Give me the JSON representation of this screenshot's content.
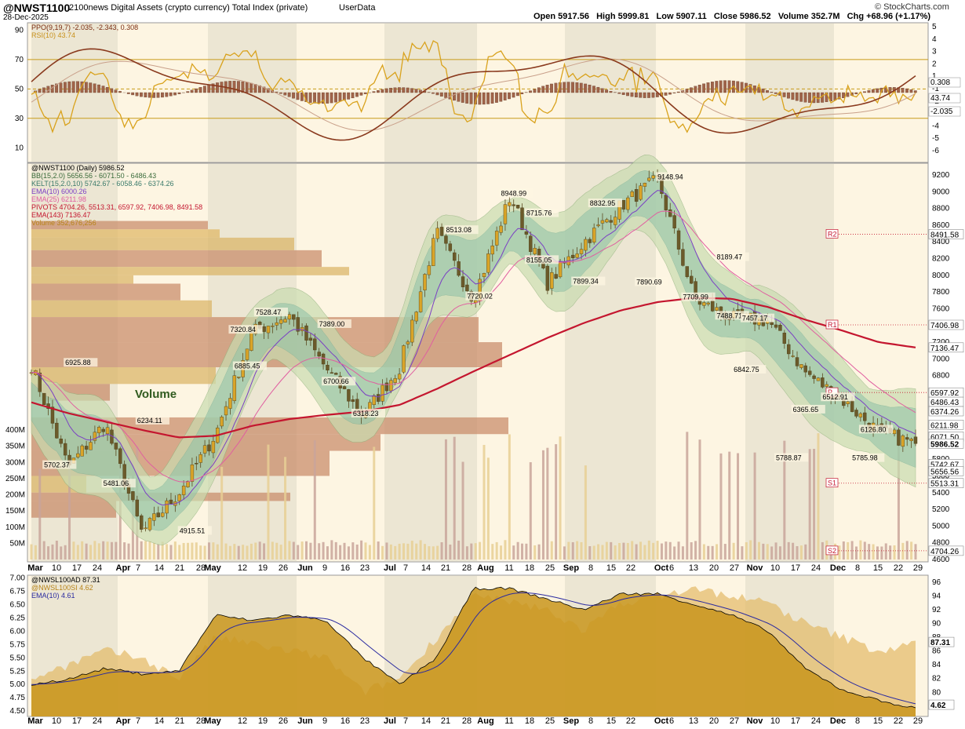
{
  "header": {
    "symbol": "@NWST1100",
    "name": "2100news Digital Assets (crypto currency) Total Index (private)",
    "source": "UserData",
    "date": "28-Dec-2025",
    "ohlc": "Open 5917.56   High 5999.81   Low 5907.11   Close 5986.52   Volume 352.7M   Chg +68.96 (+1.17%)",
    "watermark": "© StockCharts.com"
  },
  "top_panel": {
    "legend": [
      "PPO(9,19,7) -2.035, -2.343, 0.308",
      "RSI(10) 43.74"
    ],
    "left_ticks": [
      "90",
      "70",
      "50",
      "30",
      "10"
    ],
    "right_ticks": [
      "5",
      "4",
      "3",
      "2",
      "1",
      "-1",
      "-2",
      "-3",
      "-4",
      "-5",
      "-6"
    ],
    "tags": [
      "0.308",
      "43.74",
      "-2.035"
    ]
  },
  "main_panel": {
    "legend": [
      "@NWST1100 (Daily) 5986.52",
      "BB(15,2.0) 5656.56 - 6071.50 - 6486.43",
      "KELT(15,2.0,10) 5742.67 - 6058.46 - 6374.26",
      "EMA(10) 6000.26",
      "EMA(25) 6211.98",
      "PIVOTS 4704.26, 5513.31, 6597.92, 7406.98, 8491.58",
      "EMA(143) 7136.47",
      "Volume 352,676,256"
    ],
    "right_ticks": [
      "9200",
      "9000",
      "8800",
      "8600",
      "8400",
      "8200",
      "8000",
      "7800",
      "7600",
      "7400",
      "7200",
      "7000",
      "6800",
      "6600",
      "6400",
      "6200",
      "6000",
      "5800",
      "5600",
      "5400",
      "5200",
      "5000",
      "4800",
      "4600"
    ],
    "volume_ticks": [
      "400M",
      "350M",
      "300M",
      "250M",
      "200M",
      "150M",
      "100M",
      "50M"
    ],
    "volume_label": "Volume",
    "annotations": [
      "6925.88",
      "5702.37",
      "5481.06",
      "6234.11",
      "4915.51",
      "7320.84",
      "7528.47",
      "6885.45",
      "7389.00",
      "6700.66",
      "6318.23",
      "8513.08",
      "7720.02",
      "8948.99",
      "8715.76",
      "8155.05",
      "8832.95",
      "7899.34",
      "7890.69",
      "9148.94",
      "7709.99",
      "8189.47",
      "7488.71",
      "7457.17",
      "6842.75",
      "6512.91",
      "6365.65",
      "5788.87",
      "6126.80",
      "5785.98"
    ],
    "pivots": [
      "R2",
      "R1",
      "P",
      "S1",
      "S2"
    ],
    "tags": [
      "8491.58",
      "7406.98",
      "7136.47",
      "6597.92",
      "6486.43",
      "6374.26",
      "6211.98",
      "6071.50",
      "5986.52",
      "5742.67",
      "5656.56",
      "5513.31",
      "4704.26"
    ]
  },
  "bottom_panel": {
    "legend": [
      "@NWSL100AD 87.31",
      "@NWSL100SI 4.62",
      "EMA(10) 4.61"
    ],
    "left_ticks": [
      "7.00",
      "6.75",
      "6.50",
      "6.25",
      "6.00",
      "5.75",
      "5.50",
      "5.25",
      "5.00",
      "4.75",
      "4.50"
    ],
    "right_ticks": [
      "96",
      "94",
      "92",
      "90",
      "88",
      "86",
      "84",
      "82",
      "80",
      "78"
    ],
    "tags": [
      "87.31",
      "4.62"
    ]
  },
  "x_axis": {
    "labels": [
      "Mar",
      "10",
      "17",
      "24",
      "Apr",
      "7",
      "14",
      "21",
      "28",
      "May",
      "12",
      "19",
      "26",
      "Jun",
      "9",
      "16",
      "23",
      "Jul",
      "7",
      "14",
      "21",
      "28",
      "Aug",
      "11",
      "18",
      "25",
      "Sep",
      "8",
      "15",
      "22",
      "Oct",
      "6",
      "13",
      "20",
      "27",
      "Nov",
      "10",
      "17",
      "24",
      "Dec",
      "8",
      "15",
      "22",
      "29"
    ]
  },
  "chart_data": {
    "type": "line",
    "title": "@NWST1100 2100news Digital Assets (crypto currency) Total Index (private)",
    "x": [
      "Mar 3",
      "Mar 17",
      "Apr 1",
      "Apr 9",
      "Apr 21",
      "May 1",
      "May 12",
      "May 26",
      "Jun 9",
      "Jun 23",
      "Jul 7",
      "Jul 21",
      "Aug 1",
      "Aug 11",
      "Aug 25",
      "Sep 8",
      "Sep 22",
      "Oct 6",
      "Oct 20",
      "Nov 1",
      "Nov 10",
      "Nov 24",
      "Dec 8",
      "Dec 22",
      "Dec 28"
    ],
    "series": [
      {
        "name": "@NWST1100 (Daily)",
        "values": [
          6925.88,
          5702.37,
          6234.11,
          4915.51,
          5400,
          6100,
          7320.84,
          7528.47,
          6885.45,
          6318.23,
          6900,
          8513.08,
          7720.02,
          8948.99,
          7899.34,
          8400,
          8832.95,
          9148.94,
          7709.99,
          7488.71,
          7457.17,
          6842.75,
          6512.91,
          6126.8,
          5986.52
        ]
      },
      {
        "name": "EMA(143)",
        "values": [
          6480,
          6350,
          6250,
          6150,
          6060,
          6080,
          6200,
          6280,
          6330,
          6370,
          6450,
          6640,
          6850,
          7050,
          7250,
          7430,
          7580,
          7680,
          7730,
          7720,
          7620,
          7470,
          7340,
          7200,
          7136.47
        ]
      }
    ],
    "ylim": [
      4600,
      9200
    ],
    "pivots": {
      "R2": 8491.58,
      "R1": 7406.98,
      "P": 6597.92,
      "S1": 5513.31,
      "S2": 4704.26
    }
  }
}
